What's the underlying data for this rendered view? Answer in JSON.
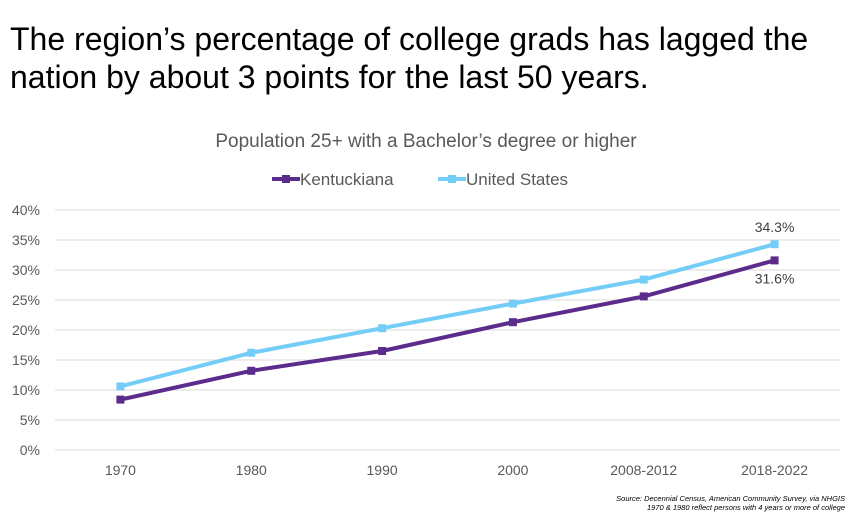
{
  "headline": "The region’s percentage of college grads has lagged the nation by about 3 points for the last 50 years.",
  "source": {
    "line1": "Source: Decennial Census, American Community Survey, via NHGIS",
    "line2": "1970 & 1980 reflect persons with 4 years or more of college"
  },
  "colors": {
    "kentuckiana": "#5b2c8c",
    "united_states": "#74cdf7",
    "grid": "#d9d9d9",
    "text": "#595959"
  },
  "chart_data": {
    "type": "line",
    "title": "Population 25+ with a Bachelor’s degree or higher",
    "categories": [
      "1970",
      "1980",
      "1990",
      "2000",
      "2008-2012",
      "2018-2022"
    ],
    "ylim": [
      0,
      40
    ],
    "yticks": [
      "0%",
      "5%",
      "10%",
      "15%",
      "20%",
      "25%",
      "30%",
      "35%",
      "40%"
    ],
    "grid": true,
    "legend": "top",
    "series": [
      {
        "name": "Kentuckiana",
        "values": [
          8.4,
          13.2,
          16.5,
          21.3,
          25.6,
          31.6
        ],
        "color": "#5b2c8c"
      },
      {
        "name": "United States",
        "values": [
          10.6,
          16.2,
          20.3,
          24.4,
          28.4,
          34.3
        ],
        "color": "#74cdf7"
      }
    ],
    "data_labels": [
      {
        "series": 1,
        "index": 5,
        "text": "34.3%",
        "position": "above"
      },
      {
        "series": 0,
        "index": 5,
        "text": "31.6%",
        "position": "below"
      }
    ]
  }
}
